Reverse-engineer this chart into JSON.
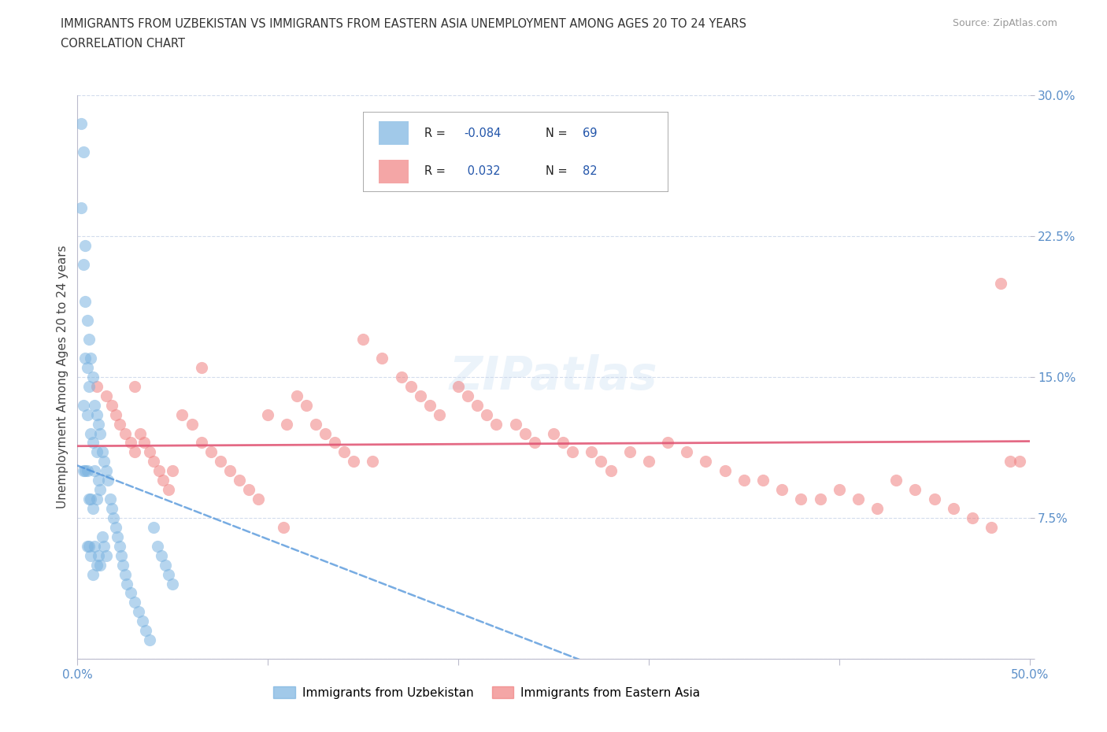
{
  "title_line1": "IMMIGRANTS FROM UZBEKISTAN VS IMMIGRANTS FROM EASTERN ASIA UNEMPLOYMENT AMONG AGES 20 TO 24 YEARS",
  "title_line2": "CORRELATION CHART",
  "source_text": "Source: ZipAtlas.com",
  "ylabel": "Unemployment Among Ages 20 to 24 years",
  "xlim": [
    0.0,
    0.5
  ],
  "ylim": [
    0.0,
    0.3
  ],
  "r_uzbekistan": -0.084,
  "n_uzbekistan": 69,
  "r_eastern_asia": 0.032,
  "n_eastern_asia": 82,
  "uzbekistan_color": "#7ab3e0",
  "eastern_asia_color": "#f08080",
  "uzbekistan_line_color": "#4a90d9",
  "eastern_asia_line_color": "#e05070",
  "uzbekistan_x": [
    0.002,
    0.002,
    0.003,
    0.003,
    0.003,
    0.003,
    0.004,
    0.004,
    0.004,
    0.004,
    0.005,
    0.005,
    0.005,
    0.005,
    0.005,
    0.006,
    0.006,
    0.006,
    0.006,
    0.007,
    0.007,
    0.007,
    0.007,
    0.008,
    0.008,
    0.008,
    0.008,
    0.009,
    0.009,
    0.009,
    0.01,
    0.01,
    0.01,
    0.01,
    0.011,
    0.011,
    0.011,
    0.012,
    0.012,
    0.012,
    0.013,
    0.013,
    0.014,
    0.014,
    0.015,
    0.015,
    0.016,
    0.017,
    0.018,
    0.019,
    0.02,
    0.021,
    0.022,
    0.023,
    0.024,
    0.025,
    0.026,
    0.028,
    0.03,
    0.032,
    0.034,
    0.036,
    0.038,
    0.04,
    0.042,
    0.044,
    0.046,
    0.048,
    0.05
  ],
  "uzbekistan_y": [
    0.285,
    0.24,
    0.27,
    0.21,
    0.135,
    0.1,
    0.22,
    0.19,
    0.16,
    0.1,
    0.18,
    0.155,
    0.13,
    0.1,
    0.06,
    0.17,
    0.145,
    0.085,
    0.06,
    0.16,
    0.12,
    0.085,
    0.055,
    0.15,
    0.115,
    0.08,
    0.045,
    0.135,
    0.1,
    0.06,
    0.13,
    0.11,
    0.085,
    0.05,
    0.125,
    0.095,
    0.055,
    0.12,
    0.09,
    0.05,
    0.11,
    0.065,
    0.105,
    0.06,
    0.1,
    0.055,
    0.095,
    0.085,
    0.08,
    0.075,
    0.07,
    0.065,
    0.06,
    0.055,
    0.05,
    0.045,
    0.04,
    0.035,
    0.03,
    0.025,
    0.02,
    0.015,
    0.01,
    0.07,
    0.06,
    0.055,
    0.05,
    0.045,
    0.04
  ],
  "eastern_asia_x": [
    0.01,
    0.015,
    0.018,
    0.02,
    0.022,
    0.025,
    0.028,
    0.03,
    0.033,
    0.035,
    0.038,
    0.04,
    0.043,
    0.045,
    0.048,
    0.05,
    0.055,
    0.06,
    0.065,
    0.07,
    0.075,
    0.08,
    0.085,
    0.09,
    0.095,
    0.1,
    0.11,
    0.115,
    0.12,
    0.125,
    0.13,
    0.135,
    0.14,
    0.145,
    0.15,
    0.155,
    0.16,
    0.17,
    0.175,
    0.18,
    0.185,
    0.19,
    0.2,
    0.205,
    0.21,
    0.215,
    0.22,
    0.23,
    0.235,
    0.24,
    0.25,
    0.255,
    0.26,
    0.27,
    0.275,
    0.28,
    0.29,
    0.3,
    0.31,
    0.32,
    0.33,
    0.34,
    0.35,
    0.36,
    0.37,
    0.38,
    0.39,
    0.4,
    0.41,
    0.42,
    0.43,
    0.44,
    0.45,
    0.46,
    0.47,
    0.48,
    0.485,
    0.49,
    0.495,
    0.03,
    0.065,
    0.108
  ],
  "eastern_asia_y": [
    0.145,
    0.14,
    0.135,
    0.13,
    0.125,
    0.12,
    0.115,
    0.11,
    0.12,
    0.115,
    0.11,
    0.105,
    0.1,
    0.095,
    0.09,
    0.1,
    0.13,
    0.125,
    0.115,
    0.11,
    0.105,
    0.1,
    0.095,
    0.09,
    0.085,
    0.13,
    0.125,
    0.14,
    0.135,
    0.125,
    0.12,
    0.115,
    0.11,
    0.105,
    0.17,
    0.105,
    0.16,
    0.15,
    0.145,
    0.14,
    0.135,
    0.13,
    0.145,
    0.14,
    0.135,
    0.13,
    0.125,
    0.125,
    0.12,
    0.115,
    0.12,
    0.115,
    0.11,
    0.11,
    0.105,
    0.1,
    0.11,
    0.105,
    0.115,
    0.11,
    0.105,
    0.1,
    0.095,
    0.095,
    0.09,
    0.085,
    0.085,
    0.09,
    0.085,
    0.08,
    0.095,
    0.09,
    0.085,
    0.08,
    0.075,
    0.07,
    0.2,
    0.105,
    0.105,
    0.145,
    0.155,
    0.07
  ]
}
